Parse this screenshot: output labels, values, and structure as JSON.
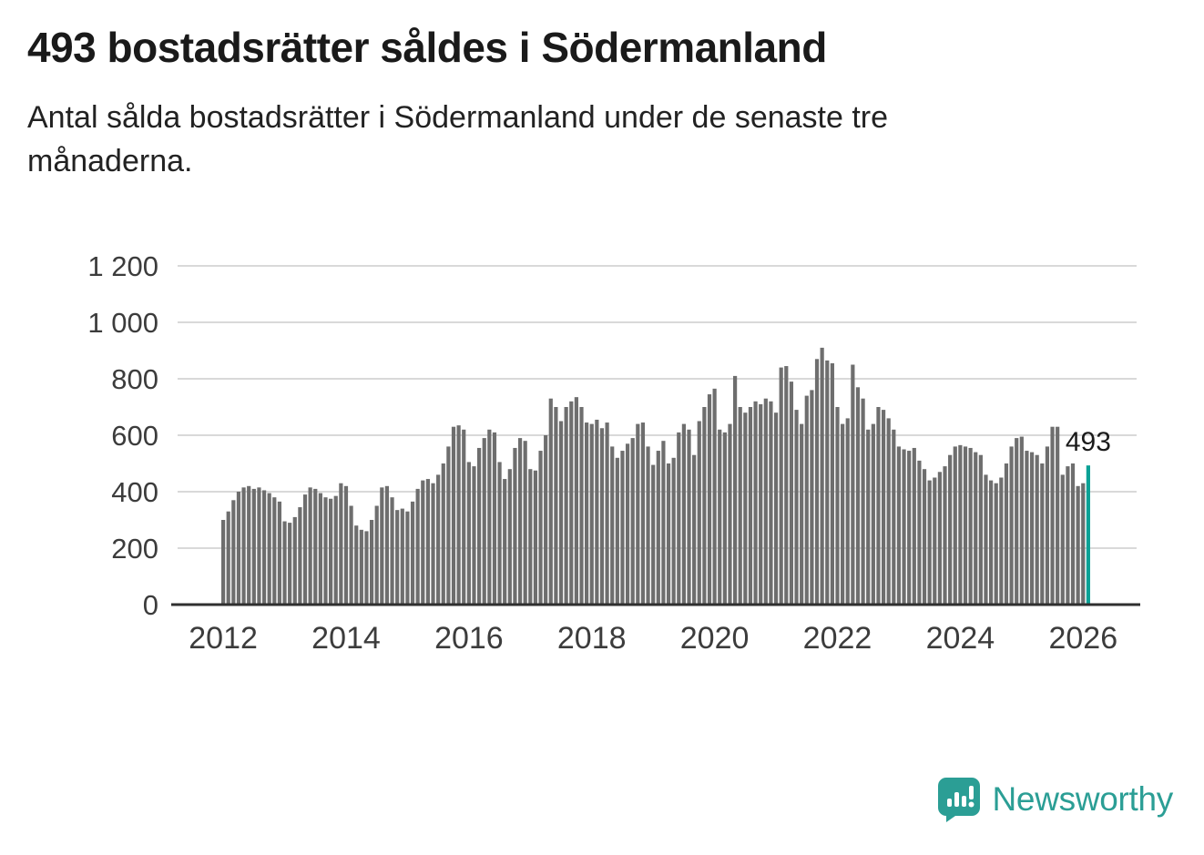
{
  "header": {
    "title": "493 bostadsrätter såldes i Södermanland",
    "subtitle": "Antal sålda bostadsrätter i Södermanland under de senaste tre månaderna."
  },
  "footer": {
    "brand": "Newsworthy"
  },
  "colors": {
    "bar": "#6e6e6e",
    "accent": "#0ba195",
    "brand": "#2b9e95",
    "grid": "#d9d9d9",
    "axis": "#2f2f2f",
    "label": "#3c3c3c",
    "annotation": "#1a1a1a"
  },
  "chart_data": {
    "type": "bar",
    "title": "493 bostadsrätter såldes i Södermanland",
    "subtitle": "Antal sålda bostadsrätter i Södermanland under de senaste tre månaderna.",
    "xlabel": "",
    "ylabel": "",
    "x_start": "2012-01",
    "frequency": "monthly",
    "ylim": [
      0,
      1200
    ],
    "grid": "horizontal",
    "legend": "none",
    "yticks": [
      0,
      200,
      400,
      600,
      800,
      1000,
      1200
    ],
    "ytick_labels": [
      "0",
      "200",
      "400",
      "600",
      "800",
      "1 000",
      "1 200"
    ],
    "xticks": [
      {
        "label": "2012",
        "month_index": 0
      },
      {
        "label": "2014",
        "month_index": 24
      },
      {
        "label": "2016",
        "month_index": 48
      },
      {
        "label": "2018",
        "month_index": 72
      },
      {
        "label": "2020",
        "month_index": 96
      },
      {
        "label": "2022",
        "month_index": 120
      },
      {
        "label": "2024",
        "month_index": 144
      },
      {
        "label": "2026",
        "month_index": 168
      }
    ],
    "values": [
      300,
      330,
      370,
      400,
      415,
      420,
      410,
      415,
      405,
      395,
      380,
      365,
      295,
      290,
      310,
      345,
      390,
      415,
      410,
      395,
      380,
      375,
      385,
      430,
      420,
      350,
      280,
      265,
      260,
      300,
      350,
      415,
      420,
      380,
      335,
      340,
      330,
      365,
      410,
      440,
      445,
      430,
      460,
      500,
      560,
      630,
      635,
      620,
      505,
      490,
      555,
      590,
      620,
      610,
      505,
      445,
      480,
      555,
      590,
      580,
      480,
      475,
      545,
      600,
      730,
      700,
      650,
      700,
      720,
      735,
      700,
      645,
      640,
      655,
      625,
      645,
      560,
      520,
      545,
      570,
      590,
      640,
      645,
      560,
      495,
      545,
      580,
      500,
      520,
      610,
      640,
      620,
      530,
      650,
      700,
      745,
      765,
      620,
      610,
      640,
      810,
      700,
      680,
      700,
      720,
      710,
      730,
      720,
      680,
      840,
      845,
      790,
      690,
      640,
      740,
      760,
      870,
      910,
      865,
      855,
      700,
      640,
      660,
      850,
      770,
      730,
      620,
      640,
      700,
      690,
      660,
      620,
      560,
      550,
      545,
      555,
      510,
      480,
      440,
      450,
      470,
      490,
      530,
      560,
      565,
      560,
      555,
      540,
      530,
      460,
      440,
      430,
      450,
      500,
      560,
      590,
      595,
      545,
      540,
      530,
      500,
      560,
      630,
      630,
      460,
      490,
      500,
      420,
      430,
      493
    ],
    "highlight": {
      "index": 169,
      "value": 493,
      "label": "493"
    }
  }
}
